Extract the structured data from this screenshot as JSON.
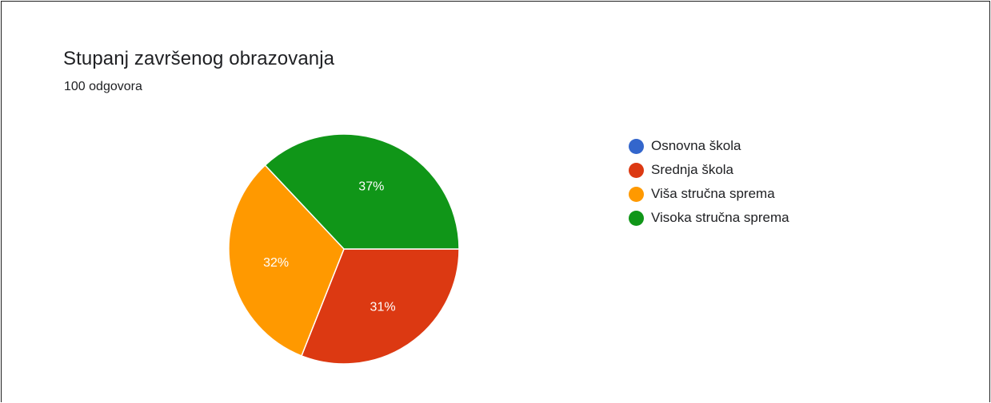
{
  "header": {
    "title": "Stupanj završenog obrazovanja",
    "subtitle": "100 odgovora"
  },
  "chart_data": {
    "type": "pie",
    "title": "Stupanj završenog obrazovanja",
    "categories": [
      "Osnovna škola",
      "Srednja škola",
      "Viša stručna sprema",
      "Visoka stručna sprema"
    ],
    "values": [
      0,
      31,
      32,
      37
    ],
    "labels": [
      "",
      "31%",
      "32%",
      "37%"
    ],
    "colors": [
      "#3366cc",
      "#dc3912",
      "#ff9900",
      "#109618"
    ],
    "legend_position": "right"
  }
}
